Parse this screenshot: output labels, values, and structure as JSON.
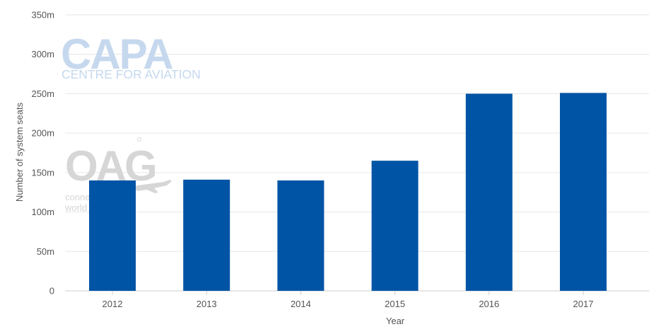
{
  "chart_data": {
    "type": "bar",
    "xlabel": "Year",
    "ylabel": "Number of system seats",
    "categories": [
      "2012",
      "2013",
      "2014",
      "2015",
      "2016",
      "2017"
    ],
    "values": [
      140,
      141,
      140,
      165,
      250,
      251
    ],
    "ylim": [
      0,
      350
    ],
    "yticks": [
      0,
      50,
      100,
      150,
      200,
      250,
      300,
      350
    ],
    "ytick_labels": [
      "0",
      "50m",
      "100m",
      "150m",
      "200m",
      "250m",
      "300m",
      "350m"
    ],
    "grid": true,
    "bar_color": "#0054a6"
  },
  "watermarks": {
    "capa_logo": "CAPA",
    "capa_tagline": "CENTRE FOR AVIATION",
    "oag_logo": "OAG",
    "oag_tagline_1": "conne",
    "oag_tagline_2": "world",
    "capa_color": "#c5d8ee",
    "oag_color": "#d6d6d6"
  }
}
